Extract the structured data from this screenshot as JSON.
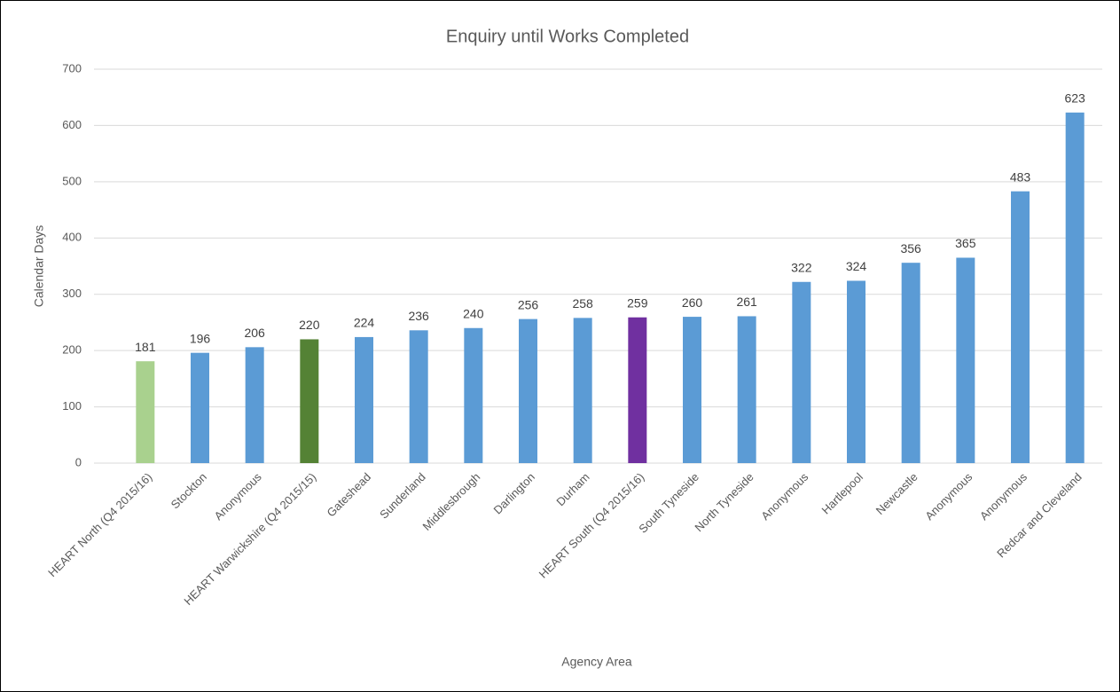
{
  "chart_data": {
    "type": "bar",
    "title": "Enquiry until Works Completed",
    "y_label": "Calendar Days",
    "x_label": "Agency Area",
    "categories": [
      "HEART North (Q4 2015/16)",
      "Stockton",
      "Anonymous",
      "HEART Warwickshire (Q4 2015/15)",
      "Gateshead",
      "Sunderland",
      "Middlesbrough",
      "Darlington",
      "Durham",
      "HEART South (Q4 2015/16)",
      "South Tyneside",
      "North Tyneside",
      "Anonymous",
      "Hartlepool",
      "Newcastle",
      "Anonymous",
      "Anonymous",
      "Redcar and Cleveland"
    ],
    "values": [
      181,
      196,
      206,
      220,
      224,
      236,
      240,
      256,
      258,
      259,
      260,
      261,
      322,
      324,
      356,
      365,
      483,
      623
    ],
    "colors": [
      "#a9d18e",
      "#5b9bd5",
      "#5b9bd5",
      "#548235",
      "#5b9bd5",
      "#5b9bd5",
      "#5b9bd5",
      "#5b9bd5",
      "#5b9bd5",
      "#7030a0",
      "#5b9bd5",
      "#5b9bd5",
      "#5b9bd5",
      "#5b9bd5",
      "#5b9bd5",
      "#5b9bd5",
      "#5b9bd5",
      "#5b9bd5"
    ],
    "ylim": [
      0,
      700
    ],
    "yticks": [
      0,
      100,
      200,
      300,
      400,
      500,
      600,
      700
    ],
    "grid": true
  }
}
